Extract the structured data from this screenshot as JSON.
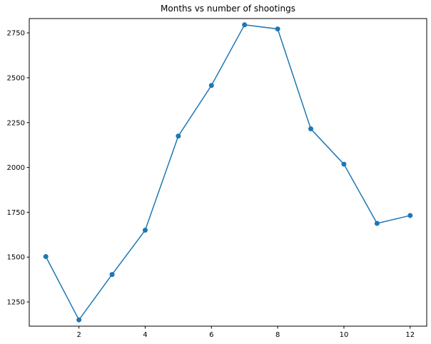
{
  "chart_data": {
    "type": "line",
    "title": "Months vs number of shootings",
    "xlabel": "",
    "ylabel": "",
    "x": [
      1,
      2,
      3,
      4,
      5,
      6,
      7,
      8,
      9,
      10,
      11,
      12
    ],
    "series": [
      {
        "values": [
          1503,
          1150,
          1403,
          1650,
          2175,
          2457,
          2795,
          2772,
          2215,
          2018,
          1688,
          1732
        ],
        "color": "#1f77b4",
        "marker": "circle"
      }
    ],
    "xlim": [
      0.5,
      12.5
    ],
    "ylim": [
      1115,
      2830
    ],
    "xticks": [
      2,
      4,
      6,
      8,
      10,
      12
    ],
    "yticks": [
      1250,
      1500,
      1750,
      2000,
      2250,
      2500,
      2750
    ],
    "grid": false,
    "legend": false
  }
}
